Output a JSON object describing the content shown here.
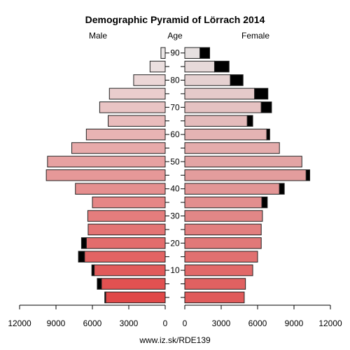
{
  "chart_data": {
    "type": "bar",
    "title": "Demographic Pyramid of Lörrach 2014",
    "left_label": "Male",
    "center_label": "Age",
    "right_label": "Female",
    "footer": "www.iz.sk/RDE139",
    "xlim": [
      0,
      12000
    ],
    "x_ticks_male": [
      "12000",
      "9000",
      "6000",
      "3000",
      "0"
    ],
    "x_ticks_female": [
      "0",
      "3000",
      "6000",
      "9000",
      "12000"
    ],
    "x_tick_values": [
      12000,
      9000,
      6000,
      3000,
      0
    ],
    "age_tick_labels": [
      "10",
      "20",
      "30",
      "40",
      "50",
      "60",
      "70",
      "80",
      "90"
    ],
    "age_groups": [
      "0-4",
      "5-9",
      "10-14",
      "15-19",
      "20-24",
      "25-29",
      "30-34",
      "35-39",
      "40-44",
      "45-49",
      "50-54",
      "55-59",
      "60-64",
      "65-69",
      "70-74",
      "75-79",
      "80-84",
      "85-89",
      "90+"
    ],
    "series": [
      {
        "name": "Male",
        "values": [
          4900,
          5250,
          5850,
          6650,
          6500,
          6350,
          6380,
          6000,
          7400,
          9800,
          9700,
          7700,
          6500,
          4700,
          5400,
          4600,
          2600,
          1250,
          350
        ],
        "excess": [
          80,
          350,
          200,
          500,
          400,
          0,
          0,
          0,
          0,
          0,
          0,
          0,
          0,
          0,
          0,
          0,
          0,
          0,
          0
        ]
      },
      {
        "name": "Female",
        "values": [
          4900,
          5000,
          5600,
          6000,
          6300,
          6300,
          6400,
          6350,
          7800,
          10000,
          9650,
          7800,
          6750,
          5150,
          6300,
          5750,
          3750,
          2450,
          1250
        ],
        "excess": [
          0,
          0,
          0,
          0,
          0,
          0,
          0,
          450,
          400,
          300,
          0,
          0,
          250,
          450,
          850,
          1100,
          1050,
          1200,
          800
        ]
      }
    ],
    "colors": {
      "male_young": "#e04848",
      "male_old": "#ece8e8",
      "female_young": "#e05a5a",
      "female_old": "#e6e0e0",
      "excess": "#000000",
      "outline": "#222222"
    }
  }
}
